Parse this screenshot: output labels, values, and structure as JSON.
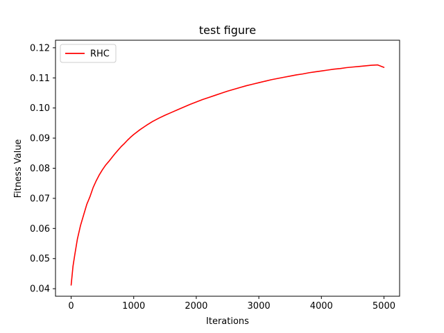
{
  "chart_data": {
    "type": "line",
    "title": "test figure",
    "xlabel": "Iterations",
    "ylabel": "Fitness Value",
    "xlim": [
      -250,
      5250
    ],
    "ylim": [
      0.0375,
      0.1225
    ],
    "xticks": [
      0,
      1000,
      2000,
      3000,
      4000,
      5000
    ],
    "xtick_labels": [
      "0",
      "1000",
      "2000",
      "3000",
      "4000",
      "5000"
    ],
    "yticks": [
      0.04,
      0.05,
      0.06,
      0.07,
      0.08,
      0.09,
      0.1,
      0.11,
      0.12
    ],
    "ytick_labels": [
      "0.04",
      "0.05",
      "0.06",
      "0.07",
      "0.08",
      "0.09",
      "0.10",
      "0.11",
      "0.12"
    ],
    "grid": false,
    "legend_position": "top-left",
    "series": [
      {
        "name": "RHC",
        "color": "#ff0000",
        "x": [
          0,
          30,
          60,
          100,
          150,
          200,
          250,
          300,
          350,
          400,
          450,
          500,
          550,
          600,
          650,
          700,
          750,
          800,
          850,
          900,
          950,
          1000,
          1100,
          1200,
          1300,
          1400,
          1500,
          1600,
          1700,
          1800,
          1900,
          2000,
          2100,
          2200,
          2300,
          2400,
          2500,
          2600,
          2700,
          2800,
          2900,
          3000,
          3100,
          3200,
          3300,
          3400,
          3500,
          3600,
          3700,
          3800,
          3900,
          4000,
          4100,
          4200,
          4300,
          4400,
          4500,
          4600,
          4700,
          4800,
          4900,
          5000
        ],
        "values": [
          0.0412,
          0.0475,
          0.0515,
          0.0565,
          0.061,
          0.0645,
          0.068,
          0.0705,
          0.0735,
          0.0758,
          0.0778,
          0.0795,
          0.081,
          0.0822,
          0.0835,
          0.0848,
          0.086,
          0.0872,
          0.0882,
          0.0893,
          0.0903,
          0.0912,
          0.0928,
          0.0942,
          0.0955,
          0.0966,
          0.0976,
          0.0985,
          0.0994,
          0.1003,
          0.1012,
          0.102,
          0.1028,
          0.1035,
          0.1042,
          0.1049,
          0.1056,
          0.1062,
          0.1068,
          0.1074,
          0.1079,
          0.1084,
          0.1089,
          0.1094,
          0.1098,
          0.1102,
          0.1106,
          0.111,
          0.1113,
          0.1117,
          0.112,
          0.1123,
          0.1126,
          0.1129,
          0.1131,
          0.1134,
          0.1136,
          0.1138,
          0.114,
          0.1142,
          0.1143,
          0.1135
        ]
      }
    ]
  }
}
